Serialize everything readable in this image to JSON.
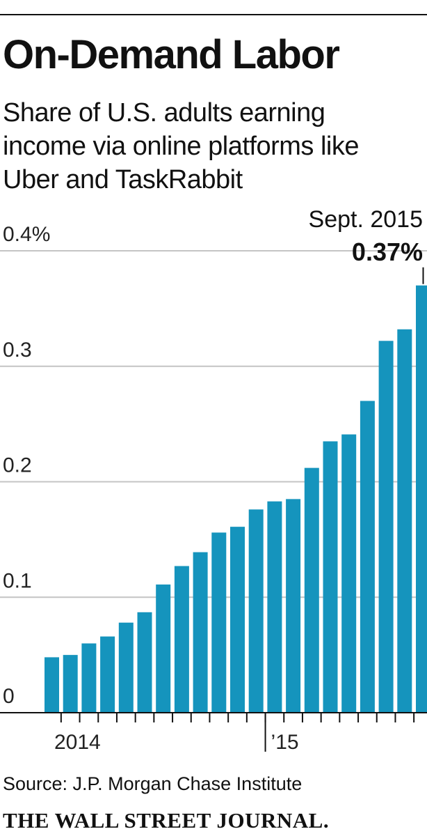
{
  "title": "On-Demand Labor",
  "subtitle_lines": [
    "Share of U.S. adults earning",
    "income via online platforms like",
    "Uber and TaskRabbit"
  ],
  "source": "Source: J.P. Morgan Chase Institute",
  "publisher": "THE WALL STREET JOURNAL.",
  "colors": {
    "bar": "#1594bd",
    "grid": "#c4c4c4",
    "axis": "#111111"
  },
  "chart_data": {
    "type": "bar",
    "ylim": [
      0,
      0.4
    ],
    "y_ticks": [
      {
        "value": 0,
        "label": "0"
      },
      {
        "value": 0.1,
        "label": "0.1"
      },
      {
        "value": 0.2,
        "label": "0.2"
      },
      {
        "value": 0.3,
        "label": "0.3"
      },
      {
        "value": 0.4,
        "label": "0.4%"
      }
    ],
    "x_labels": [
      {
        "label": "2014",
        "index": 1
      },
      {
        "label": "’15",
        "index": 12
      }
    ],
    "values": [
      0.048,
      0.05,
      0.06,
      0.066,
      0.078,
      0.087,
      0.111,
      0.127,
      0.139,
      0.156,
      0.161,
      0.176,
      0.183,
      0.185,
      0.212,
      0.235,
      0.241,
      0.27,
      0.322,
      0.332,
      0.37
    ],
    "annotation": {
      "index": 20,
      "date": "Sept. 2015",
      "value_label": "0.37%"
    }
  }
}
